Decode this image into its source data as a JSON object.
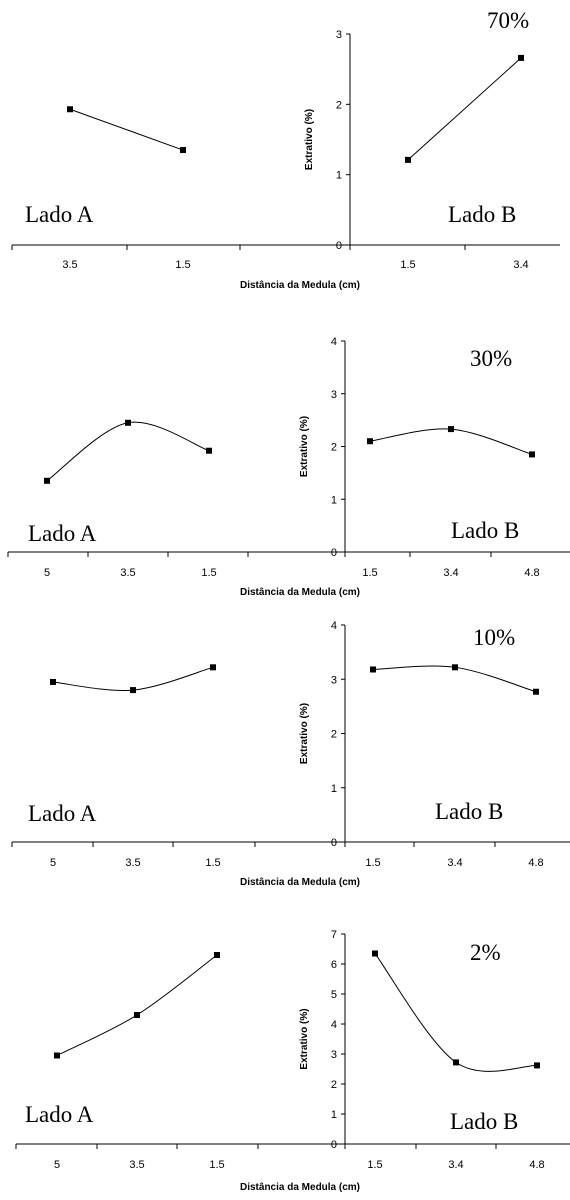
{
  "chart_data": [
    {
      "type": "line",
      "concentration_label": "70%",
      "xlabel": "Distância da Medula (cm)",
      "ylabel": "Extrativo (%)",
      "ylim": [
        0,
        3
      ],
      "yticks": [
        "0",
        "1",
        "2",
        "3"
      ],
      "side_a": {
        "label": "Lado A",
        "categories": [
          "3.5",
          "1.5"
        ],
        "values": [
          1.93,
          1.35
        ]
      },
      "side_b": {
        "label": "Lado B",
        "categories": [
          "1.5",
          "3.4"
        ],
        "values": [
          1.21,
          2.66
        ]
      },
      "smooth": false
    },
    {
      "type": "line",
      "concentration_label": "30%",
      "xlabel": "Distância da Medula (cm)",
      "ylabel": "Extrativo (%)",
      "ylim": [
        0,
        4
      ],
      "yticks": [
        "0",
        "1",
        "2",
        "3",
        "4"
      ],
      "side_a": {
        "label": "Lado A",
        "categories": [
          "5",
          "3.5",
          "1.5"
        ],
        "values": [
          1.35,
          2.45,
          1.92
        ]
      },
      "side_b": {
        "label": "Lado B",
        "categories": [
          "1.5",
          "3.4",
          "4.8"
        ],
        "values": [
          2.1,
          2.33,
          1.85
        ]
      },
      "smooth": true
    },
    {
      "type": "line",
      "concentration_label": "10%",
      "xlabel": "Distância da Medula (cm)",
      "ylabel": "Extrativo (%)",
      "ylim": [
        0,
        4
      ],
      "yticks": [
        "0",
        "1",
        "2",
        "3",
        "4"
      ],
      "side_a": {
        "label": "Lado A",
        "categories": [
          "5",
          "3.5",
          "1.5"
        ],
        "values": [
          2.95,
          2.8,
          3.22
        ]
      },
      "side_b": {
        "label": "Lado B",
        "categories": [
          "1.5",
          "3.4",
          "4.8"
        ],
        "values": [
          3.18,
          3.22,
          2.77
        ]
      },
      "smooth": true
    },
    {
      "type": "line",
      "concentration_label": "2%",
      "xlabel": "Distância da Medula (cm)",
      "ylabel": "Extrativo (%)",
      "ylim": [
        0,
        7
      ],
      "yticks": [
        "0",
        "1",
        "2",
        "3",
        "4",
        "5",
        "6",
        "7"
      ],
      "side_a": {
        "label": "Lado A",
        "categories": [
          "5",
          "3.5",
          "1.5"
        ],
        "values": [
          2.95,
          4.3,
          6.3
        ]
      },
      "side_b": {
        "label": "Lado B",
        "categories": [
          "1.5",
          "3.4",
          "4.8"
        ],
        "values": [
          6.35,
          2.72,
          2.62
        ]
      },
      "smooth": true
    }
  ]
}
